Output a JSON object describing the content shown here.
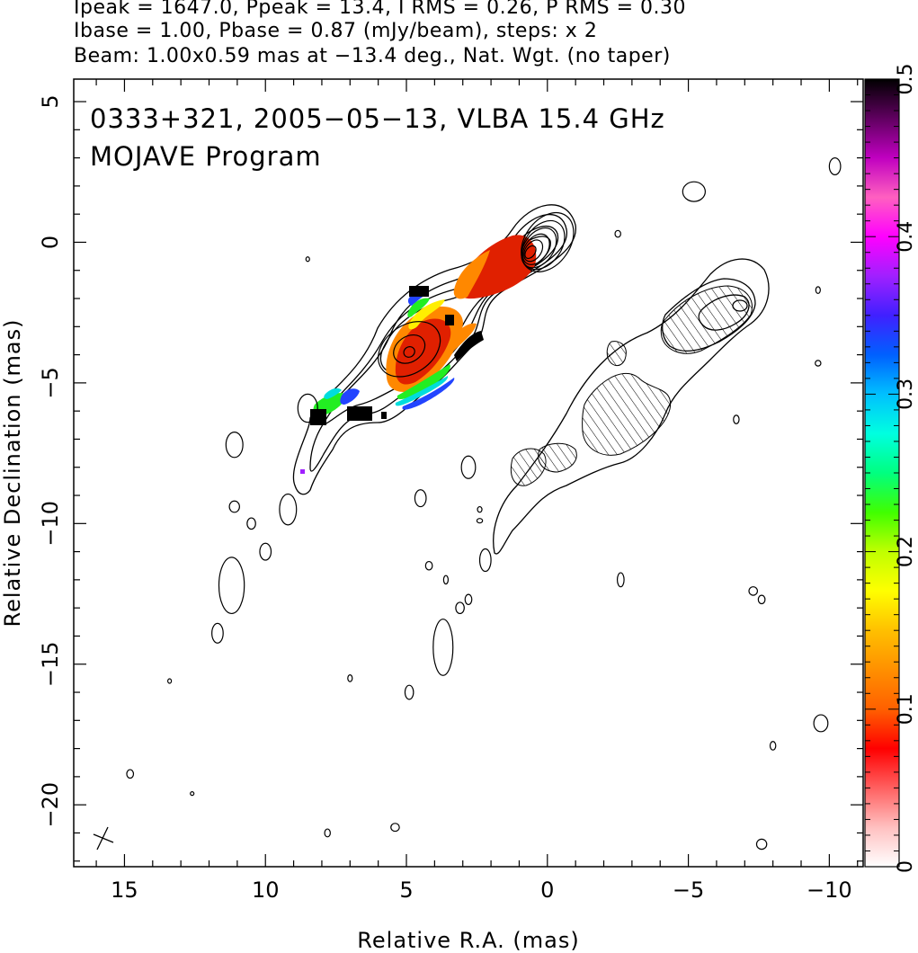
{
  "header": {
    "line1": "Ipeak = 1647.0, Ppeak = 13.4, I RMS = 0.26, P RMS = 0.30",
    "line2": "Ibase = 1.00, Pbase = 0.87 (mJy/beam), steps: x 2",
    "line3": "Beam: 1.00x0.59 mas at −13.4 deg., Nat. Wgt. (no taper)"
  },
  "annotations": {
    "source_line": "0333+321, 2005−05−13, VLBA 15.4 GHz",
    "program_line": "MOJAVE Program"
  },
  "chart_data": [
    {
      "type": "heatmap",
      "xlabel": "Relative R.A. (mas)",
      "ylabel": "Relative Declination (mas)",
      "xlim": [
        16.8,
        -11.2
      ],
      "ylim": [
        -22.2,
        5.8
      ],
      "x_ticks": [
        {
          "value": 15,
          "label": "15"
        },
        {
          "value": 10,
          "label": "10"
        },
        {
          "value": 5,
          "label": "5"
        },
        {
          "value": 0,
          "label": "0"
        },
        {
          "value": -5,
          "label": "−5"
        },
        {
          "value": -10,
          "label": "−10"
        }
      ],
      "y_ticks": [
        {
          "value": 5,
          "label": "5"
        },
        {
          "value": 0,
          "label": "0"
        },
        {
          "value": -5,
          "label": "−5"
        },
        {
          "value": -10,
          "label": "−10"
        },
        {
          "value": -15,
          "label": "−15"
        },
        {
          "value": -20,
          "label": "−20"
        }
      ],
      "jet_contours": [
        {
          "cx": 0.0,
          "cy": 0.0,
          "rx": 1.15,
          "ry": 0.8,
          "angle": 55
        },
        {
          "cx": 0.15,
          "cy": -0.1,
          "rx": 0.95,
          "ry": 0.65,
          "angle": 55
        },
        {
          "cx": 0.3,
          "cy": -0.2,
          "rx": 0.78,
          "ry": 0.52,
          "angle": 55
        },
        {
          "cx": 0.4,
          "cy": -0.25,
          "rx": 0.6,
          "ry": 0.4,
          "angle": 55
        },
        {
          "cx": 0.5,
          "cy": -0.3,
          "rx": 0.42,
          "ry": 0.28,
          "angle": 55
        },
        {
          "cx": 0.6,
          "cy": -0.35,
          "rx": 0.25,
          "ry": 0.16,
          "angle": 55
        },
        {
          "cx": 4.9,
          "cy": -3.8,
          "rx": 1.2,
          "ry": 0.85,
          "angle": 35
        },
        {
          "cx": 4.9,
          "cy": -3.8,
          "rx": 0.6,
          "ry": 0.45,
          "angle": 35
        },
        {
          "cx": 4.9,
          "cy": -3.9,
          "rx": 0.2,
          "ry": 0.18,
          "angle": 35
        }
      ],
      "small_contours": [
        {
          "x": 8.5,
          "y": -5.9,
          "rx": 0.35,
          "ry": 0.5
        },
        {
          "x": 11.1,
          "y": -7.2,
          "rx": 0.3,
          "ry": 0.45
        },
        {
          "x": 9.2,
          "y": -9.5,
          "rx": 0.3,
          "ry": 0.55
        },
        {
          "x": 11.1,
          "y": -9.4,
          "rx": 0.18,
          "ry": 0.2
        },
        {
          "x": 10.5,
          "y": -10.0,
          "rx": 0.15,
          "ry": 0.2
        },
        {
          "x": 10.0,
          "y": -11.0,
          "rx": 0.2,
          "ry": 0.3
        },
        {
          "x": 11.2,
          "y": -12.2,
          "rx": 0.45,
          "ry": 1.0
        },
        {
          "x": 11.7,
          "y": -13.9,
          "rx": 0.2,
          "ry": 0.35
        },
        {
          "x": 13.4,
          "y": -15.6,
          "rx": 0.06,
          "ry": 0.08
        },
        {
          "x": 14.8,
          "y": -18.9,
          "rx": 0.12,
          "ry": 0.15
        },
        {
          "x": 12.6,
          "y": -19.6,
          "rx": 0.05,
          "ry": 0.06
        },
        {
          "x": 8.5,
          "y": -0.6,
          "rx": 0.06,
          "ry": 0.08
        },
        {
          "x": 7.8,
          "y": -21.0,
          "rx": 0.1,
          "ry": 0.14
        },
        {
          "x": 7.0,
          "y": -15.5,
          "rx": 0.08,
          "ry": 0.12
        },
        {
          "x": 5.4,
          "y": -20.8,
          "rx": 0.15,
          "ry": 0.14
        },
        {
          "x": 4.9,
          "y": -16.0,
          "rx": 0.15,
          "ry": 0.25
        },
        {
          "x": 4.2,
          "y": -11.5,
          "rx": 0.12,
          "ry": 0.15
        },
        {
          "x": 3.6,
          "y": -12.0,
          "rx": 0.08,
          "ry": 0.15
        },
        {
          "x": 3.7,
          "y": -14.4,
          "rx": 0.35,
          "ry": 1.0
        },
        {
          "x": 3.1,
          "y": -13.0,
          "rx": 0.15,
          "ry": 0.2
        },
        {
          "x": 2.8,
          "y": -12.7,
          "rx": 0.12,
          "ry": 0.18
        },
        {
          "x": 2.8,
          "y": -8.0,
          "rx": 0.25,
          "ry": 0.4
        },
        {
          "x": 4.5,
          "y": -9.1,
          "rx": 0.2,
          "ry": 0.3
        },
        {
          "x": 2.2,
          "y": -11.3,
          "rx": 0.2,
          "ry": 0.4
        },
        {
          "x": 2.4,
          "y": -9.9,
          "rx": 0.1,
          "ry": 0.08
        },
        {
          "x": -2.6,
          "y": -12.0,
          "rx": 0.12,
          "ry": 0.25
        },
        {
          "x": 2.4,
          "y": -9.5,
          "rx": 0.08,
          "ry": 0.1
        },
        {
          "x": -2.5,
          "y": 0.3,
          "rx": 0.1,
          "ry": 0.12
        },
        {
          "x": -5.2,
          "y": 1.8,
          "rx": 0.4,
          "ry": 0.35
        },
        {
          "x": -10.2,
          "y": 2.7,
          "rx": 0.2,
          "ry": 0.3
        },
        {
          "x": -9.6,
          "y": -1.7,
          "rx": 0.08,
          "ry": 0.12
        },
        {
          "x": -9.6,
          "y": -4.3,
          "rx": 0.1,
          "ry": 0.1
        },
        {
          "x": -6.7,
          "y": -6.3,
          "rx": 0.1,
          "ry": 0.15
        },
        {
          "x": -7.3,
          "y": -12.4,
          "rx": 0.15,
          "ry": 0.15
        },
        {
          "x": -7.6,
          "y": -12.7,
          "rx": 0.12,
          "ry": 0.15
        },
        {
          "x": -9.7,
          "y": -17.1,
          "rx": 0.25,
          "ry": 0.3
        },
        {
          "x": -8.0,
          "y": -17.9,
          "rx": 0.1,
          "ry": 0.15
        },
        {
          "x": -7.6,
          "y": -21.4,
          "rx": 0.18,
          "ry": 0.18
        }
      ],
      "colorbar": {
        "label_ticks": [
          {
            "value": 0,
            "label": "0"
          },
          {
            "value": 0.1,
            "label": "0.1"
          },
          {
            "value": 0.2,
            "label": "0.2"
          },
          {
            "value": 0.3,
            "label": "0.3"
          },
          {
            "value": 0.4,
            "label": "0.4"
          },
          {
            "value": 0.5,
            "label": "0.5"
          }
        ],
        "range": [
          0,
          0.5
        ],
        "stops": [
          "#ffffff",
          "#ffc0c0",
          "#ff6060",
          "#ff0000",
          "#ff6000",
          "#ff9000",
          "#ffc000",
          "#ffff00",
          "#c0ff00",
          "#40ff00",
          "#00ff80",
          "#00ffe0",
          "#00c0ff",
          "#0060ff",
          "#4020ff",
          "#a020ff",
          "#ff00ff",
          "#ff60c0",
          "#c000c0",
          "#600060",
          "#000000"
        ]
      },
      "colors": {
        "fractional_pol_high": "#e02000",
        "fractional_pol_mid": "#ff8800",
        "fractional_pol_yellow": "#ffee00",
        "fractional_pol_green": "#22ee22",
        "fractional_pol_cyan": "#00dddd",
        "fractional_pol_blue": "#2244ff",
        "fractional_pol_dark": "#000000"
      }
    }
  ]
}
